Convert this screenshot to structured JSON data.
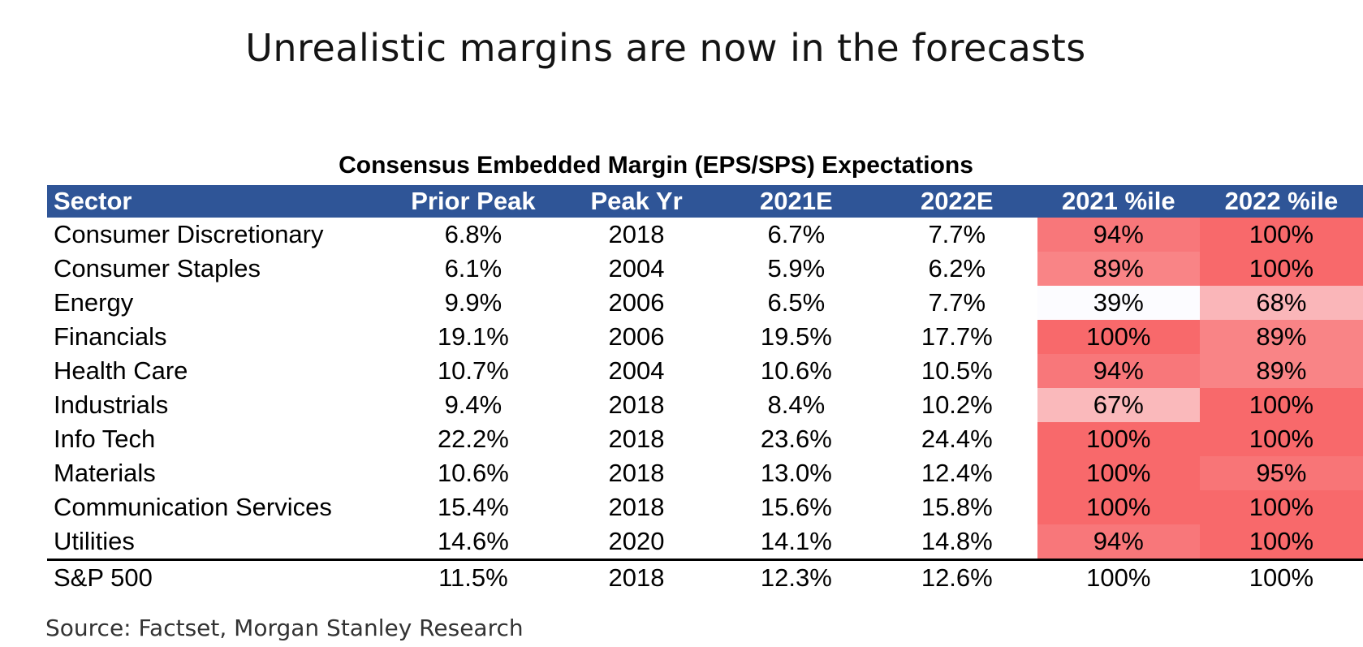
{
  "title": "Unrealistic margins are now in the forecasts",
  "source": "Source: Factset, Morgan Stanley Research",
  "chart_data": {
    "type": "table",
    "title": "Consensus Embedded Margin (EPS/SPS) Expectations",
    "columns": [
      "Sector",
      "Prior Peak",
      "Peak Yr",
      "2021E",
      "2022E",
      "2021 %ile",
      "2022 %ile"
    ],
    "rows": [
      [
        "Consumer Discretionary",
        "6.8%",
        "2018",
        "6.7%",
        "7.7%",
        "94%",
        "100%"
      ],
      [
        "Consumer Staples",
        "6.1%",
        "2004",
        "5.9%",
        "6.2%",
        "89%",
        "100%"
      ],
      [
        "Energy",
        "9.9%",
        "2006",
        "6.5%",
        "7.7%",
        "39%",
        "68%"
      ],
      [
        "Financials",
        "19.1%",
        "2006",
        "19.5%",
        "17.7%",
        "100%",
        "89%"
      ],
      [
        "Health Care",
        "10.7%",
        "2004",
        "10.6%",
        "10.5%",
        "94%",
        "89%"
      ],
      [
        "Industrials",
        "9.4%",
        "2018",
        "8.4%",
        "10.2%",
        "67%",
        "100%"
      ],
      [
        "Info Tech",
        "22.2%",
        "2018",
        "23.6%",
        "24.4%",
        "100%",
        "100%"
      ],
      [
        "Materials",
        "10.6%",
        "2018",
        "13.0%",
        "12.4%",
        "100%",
        "95%"
      ],
      [
        "Communication Services",
        "15.4%",
        "2018",
        "15.6%",
        "15.8%",
        "100%",
        "100%"
      ],
      [
        "Utilities",
        "14.6%",
        "2020",
        "14.1%",
        "14.8%",
        "94%",
        "100%"
      ]
    ],
    "total_row": [
      "S&P 500",
      "11.5%",
      "2018",
      "12.3%",
      "12.6%",
      "100%",
      "100%"
    ],
    "heatmap_columns": [
      "2021 %ile",
      "2022 %ile"
    ],
    "colors": {
      "header_bg": "#2f5597",
      "header_text": "#ffffff",
      "heat_low": "#fcfcff",
      "heat_high": "#f8696b"
    }
  }
}
